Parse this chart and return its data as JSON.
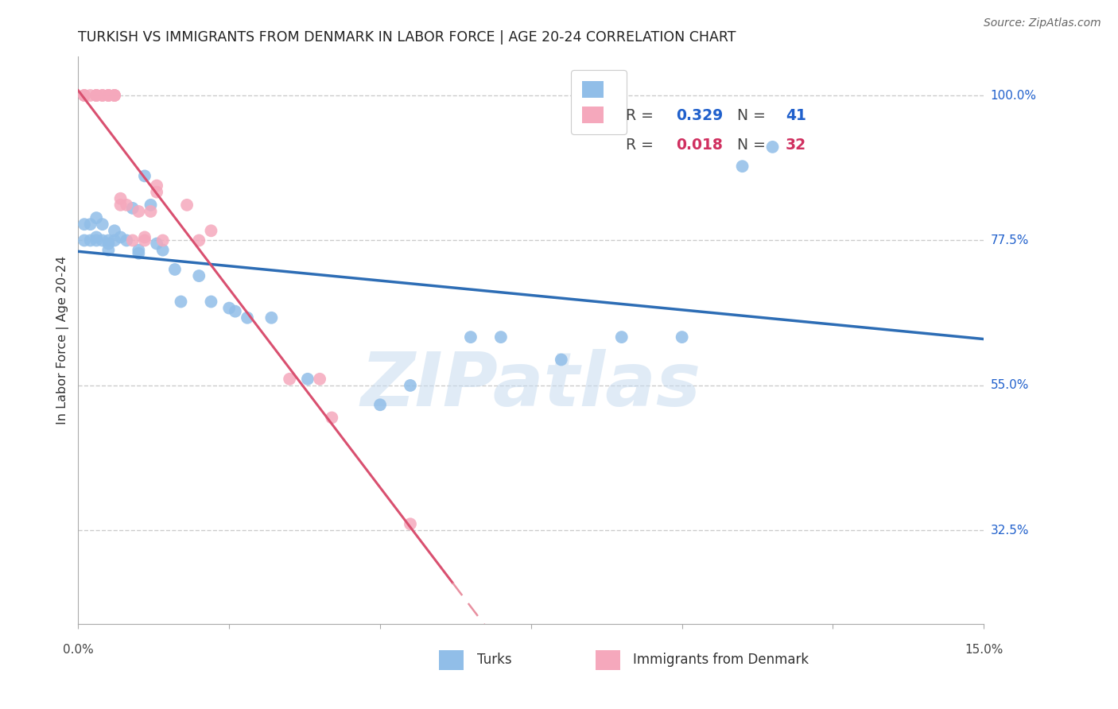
{
  "title": "TURKISH VS IMMIGRANTS FROM DENMARK IN LABOR FORCE | AGE 20-24 CORRELATION CHART",
  "source": "Source: ZipAtlas.com",
  "ylabel": "In Labor Force | Age 20-24",
  "xmin": 0.0,
  "xmax": 0.15,
  "ymin": 0.18,
  "ymax": 1.06,
  "blue_R": 0.329,
  "blue_N": 41,
  "pink_R": 0.018,
  "pink_N": 32,
  "blue_scatter_color": "#91BEE8",
  "pink_scatter_color": "#F5A8BC",
  "blue_line_color": "#2D6DB5",
  "pink_line_color_solid": "#D95070",
  "pink_line_color_dashed": "#E890A0",
  "grid_yticks": [
    0.325,
    0.55,
    0.775,
    1.0
  ],
  "right_label_color": "#2060CC",
  "turks_x": [
    0.001,
    0.001,
    0.002,
    0.002,
    0.003,
    0.003,
    0.003,
    0.004,
    0.004,
    0.005,
    0.005,
    0.005,
    0.006,
    0.006,
    0.007,
    0.008,
    0.009,
    0.01,
    0.01,
    0.011,
    0.012,
    0.013,
    0.014,
    0.016,
    0.017,
    0.02,
    0.022,
    0.025,
    0.026,
    0.028,
    0.032,
    0.038,
    0.05,
    0.055,
    0.065,
    0.07,
    0.08,
    0.09,
    0.1,
    0.11,
    0.115
  ],
  "turks_y": [
    0.8,
    0.775,
    0.8,
    0.775,
    0.81,
    0.78,
    0.775,
    0.8,
    0.775,
    0.77,
    0.775,
    0.76,
    0.79,
    0.775,
    0.78,
    0.775,
    0.825,
    0.755,
    0.76,
    0.875,
    0.83,
    0.77,
    0.76,
    0.73,
    0.68,
    0.72,
    0.68,
    0.67,
    0.665,
    0.655,
    0.655,
    0.56,
    0.52,
    0.55,
    0.625,
    0.625,
    0.59,
    0.625,
    0.625,
    0.89,
    0.92
  ],
  "denmark_x": [
    0.001,
    0.001,
    0.002,
    0.003,
    0.003,
    0.003,
    0.004,
    0.004,
    0.005,
    0.005,
    0.005,
    0.006,
    0.006,
    0.006,
    0.007,
    0.007,
    0.008,
    0.009,
    0.01,
    0.011,
    0.011,
    0.012,
    0.013,
    0.013,
    0.014,
    0.018,
    0.02,
    0.022,
    0.035,
    0.04,
    0.042,
    0.055
  ],
  "denmark_y": [
    1.0,
    1.0,
    1.0,
    1.0,
    1.0,
    1.0,
    1.0,
    1.0,
    1.0,
    1.0,
    1.0,
    1.0,
    1.0,
    1.0,
    0.83,
    0.84,
    0.83,
    0.775,
    0.82,
    0.78,
    0.775,
    0.82,
    0.85,
    0.86,
    0.775,
    0.83,
    0.775,
    0.79,
    0.56,
    0.56,
    0.5,
    0.335
  ],
  "watermark_text": "ZIPatlas",
  "background_color": "#FFFFFF"
}
